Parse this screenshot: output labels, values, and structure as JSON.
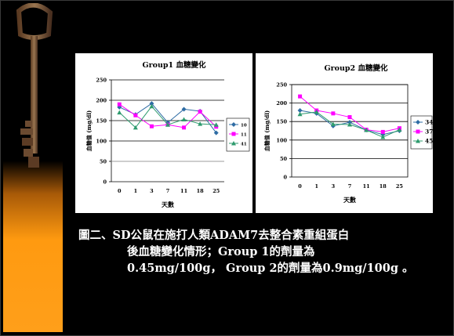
{
  "slide": {
    "caption_lines": [
      "圖二、SD公鼠在施打人類ADAM7去整合素重組蛋白",
      "後血糖變化情形；Group 1的劑量為",
      "0.45mg/100g， Group 2的劑量為0.9mg/100g 。"
    ]
  },
  "colors": {
    "background": "#000000",
    "chart_bg": "#ffffff",
    "series_10_34": "#2e6ca4",
    "series_11_37": "#ff00ff",
    "series_41_45": "#2e9b6e"
  },
  "icons": [
    "antique-key-icon"
  ],
  "chart_data": [
    {
      "type": "line",
      "title": "Group1 血糖變化",
      "xlabel": "天數",
      "ylabel": "血糖值 (mg/dl)",
      "categories": [
        "0",
        "1",
        "3",
        "7",
        "11",
        "18",
        "25"
      ],
      "ylim": [
        0,
        250
      ],
      "yticks": [
        "0",
        "50",
        "100",
        "150",
        "200",
        "250"
      ],
      "grid": true,
      "legend": "right",
      "series": [
        {
          "name": "10",
          "values": [
            183,
            165,
            192,
            145,
            178,
            173,
            120
          ]
        },
        {
          "name": "11",
          "values": [
            190,
            163,
            136,
            140,
            133,
            172,
            135
          ]
        },
        {
          "name": "41",
          "values": [
            170,
            133,
            185,
            140,
            153,
            142,
            140
          ]
        }
      ],
      "reference_line": 50
    },
    {
      "type": "line",
      "title": "Group2 血糖變化",
      "xlabel": "天數",
      "ylabel": "血糖值 (mg/dl)",
      "categories": [
        "0",
        "1",
        "3",
        "7",
        "11",
        "18",
        "25"
      ],
      "ylim": [
        0,
        250
      ],
      "yticks": [
        "0",
        "50",
        "100",
        "150",
        "200",
        "250"
      ],
      "grid": true,
      "legend": "right",
      "series": [
        {
          "name": "34",
          "values": [
            180,
            172,
            138,
            148,
            127,
            115,
            125
          ]
        },
        {
          "name": "37",
          "values": [
            218,
            180,
            172,
            162,
            128,
            122,
            132
          ]
        },
        {
          "name": "45",
          "values": [
            170,
            176,
            143,
            142,
            127,
            108,
            128
          ]
        }
      ]
    }
  ]
}
